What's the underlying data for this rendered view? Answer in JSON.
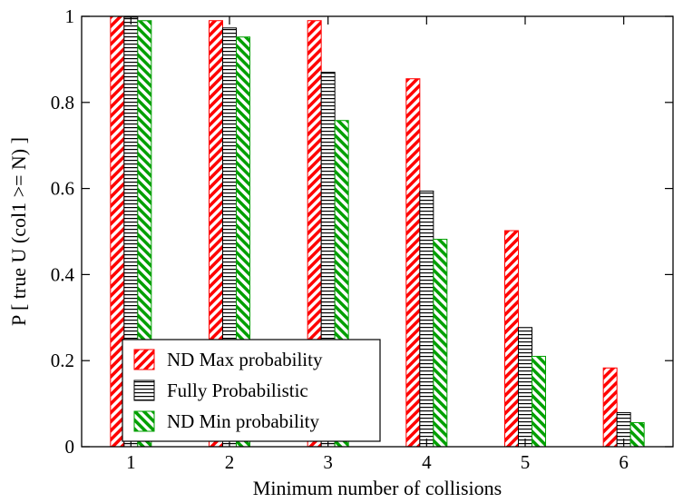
{
  "chart_data": {
    "type": "bar",
    "title": "",
    "xlabel": "Minimum number of collisions",
    "ylabel": "P [ true U (col1 >= N) ]",
    "categories": [
      "1",
      "2",
      "3",
      "4",
      "5",
      "6"
    ],
    "ylim": [
      0,
      1
    ],
    "yticks": [
      "0",
      "0.2",
      "0.4",
      "0.6",
      "0.8",
      "1"
    ],
    "grid": false,
    "legend_position": "bottom-left",
    "series": [
      {
        "name": "ND Max probability",
        "color": "#ff0000",
        "pattern": "diagonal-hatch-red",
        "values": [
          1.0,
          0.99,
          0.99,
          0.855,
          0.502,
          0.183
        ]
      },
      {
        "name": "Fully Probabilistic",
        "color": "#000000",
        "pattern": "horizontal-lines-black",
        "values": [
          0.998,
          0.973,
          0.87,
          0.594,
          0.277,
          0.079
        ]
      },
      {
        "name": "ND Min probability",
        "color": "#00a000",
        "pattern": "back-diagonal-hatch-green",
        "values": [
          0.99,
          0.952,
          0.758,
          0.482,
          0.21,
          0.056
        ]
      }
    ]
  }
}
